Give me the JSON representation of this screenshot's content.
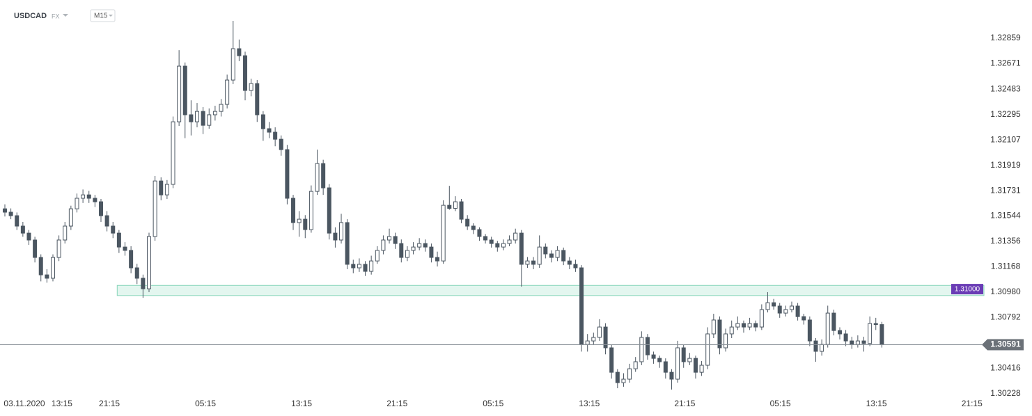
{
  "chart_data": {
    "type": "candlestick",
    "symbol": "USDCAD",
    "market": "FX",
    "timeframe": "M15",
    "grid": false,
    "up_color": "#ffffff",
    "down_color": "#4b5661",
    "edge_color": "#4b5661",
    "ylim": [
      1.30156,
      1.33091
    ],
    "xlim": [
      -0.81,
      163
    ],
    "yticks": [
      1.32859,
      1.32671,
      1.32483,
      1.32295,
      1.32107,
      1.31919,
      1.31731,
      1.31544,
      1.31356,
      1.31168,
      {
        "value": 1.3098,
        "label": "1.30980"
      },
      1.30792,
      1.30416,
      1.30228
    ],
    "xticks": [
      {
        "value": 3.25,
        "label": "03.11.2020"
      },
      {
        "value": 9.5,
        "label": "13:15"
      },
      {
        "value": 17.4,
        "label": "21:15"
      },
      {
        "value": 33.4,
        "label": "05:15"
      },
      {
        "value": 49.4,
        "label": "13:15"
      },
      {
        "value": 65.3,
        "label": "21:15"
      },
      {
        "value": 81.3,
        "label": "05:15"
      },
      {
        "value": 97.3,
        "label": "13:15"
      },
      {
        "value": 113.2,
        "label": "21:15"
      },
      {
        "value": 129.1,
        "label": "05:15"
      },
      {
        "value": 145.1,
        "label": "13:15"
      },
      {
        "value": 161.0,
        "label": "21:15"
      }
    ],
    "zone": {
      "level": 1.31,
      "label": "1.31000",
      "low": 1.30955,
      "high": 1.3103,
      "x_start": 18.7,
      "fill": "#e3f6ef",
      "edge": "#86d5b9",
      "label_color": "#6a3cb5"
    },
    "current_price": 1.30591,
    "candles": [
      [
        1.31597,
        1.3163,
        1.3154,
        1.31572
      ],
      [
        1.31572,
        1.316,
        1.3152,
        1.31546
      ],
      [
        1.31546,
        1.3157,
        1.3144,
        1.31469
      ],
      [
        1.31469,
        1.315,
        1.3139,
        1.31417
      ],
      [
        1.31417,
        1.3144,
        1.3133,
        1.31366
      ],
      [
        1.31366,
        1.3139,
        1.312,
        1.31237
      ],
      [
        1.31237,
        1.3126,
        1.3106,
        1.31108
      ],
      [
        1.31108,
        1.3115,
        1.3105,
        1.31083
      ],
      [
        1.31083,
        1.3126,
        1.3106,
        1.31237
      ],
      [
        1.31237,
        1.314,
        1.3121,
        1.31366
      ],
      [
        1.31366,
        1.315,
        1.3134,
        1.31469
      ],
      [
        1.31469,
        1.3162,
        1.3144,
        1.31597
      ],
      [
        1.31597,
        1.3171,
        1.3157,
        1.31675
      ],
      [
        1.31675,
        1.3174,
        1.3164,
        1.317
      ],
      [
        1.317,
        1.3173,
        1.3164,
        1.31675
      ],
      [
        1.31675,
        1.317,
        1.3161,
        1.31649
      ],
      [
        1.31649,
        1.3167,
        1.315,
        1.31546
      ],
      [
        1.31546,
        1.3158,
        1.3143,
        1.31469
      ],
      [
        1.31469,
        1.315,
        1.3138,
        1.31417
      ],
      [
        1.31417,
        1.3144,
        1.3127,
        1.31314
      ],
      [
        1.31314,
        1.3135,
        1.3125,
        1.31289
      ],
      [
        1.31289,
        1.3132,
        1.3112,
        1.3116
      ],
      [
        1.3116,
        1.3119,
        1.3104,
        1.31083
      ],
      [
        1.31083,
        1.3111,
        1.30938,
        1.31005
      ],
      [
        1.31005,
        1.3142,
        1.3098,
        1.31392
      ],
      [
        1.31392,
        1.3184,
        1.3136,
        1.31803
      ],
      [
        1.31803,
        1.3183,
        1.3166,
        1.317
      ],
      [
        1.317,
        1.3181,
        1.3167,
        1.31778
      ],
      [
        1.31778,
        1.3228,
        1.3175,
        1.32241
      ],
      [
        1.32241,
        1.32771,
        1.3221,
        1.32653
      ],
      [
        1.32653,
        1.3268,
        1.3212,
        1.32293
      ],
      [
        1.32293,
        1.324,
        1.3214,
        1.32241
      ],
      [
        1.32241,
        1.3238,
        1.322,
        1.32318
      ],
      [
        1.32318,
        1.3235,
        1.3215,
        1.32215
      ],
      [
        1.32215,
        1.3234,
        1.3219,
        1.32293
      ],
      [
        1.32293,
        1.3236,
        1.3225,
        1.32318
      ],
      [
        1.32318,
        1.3241,
        1.3228,
        1.3237
      ],
      [
        1.3237,
        1.3259,
        1.3234,
        1.3255
      ],
      [
        1.3255,
        1.32988,
        1.3252,
        1.32782
      ],
      [
        1.32782,
        1.3285,
        1.3269,
        1.3273
      ],
      [
        1.3273,
        1.3276,
        1.324,
        1.32473
      ],
      [
        1.32473,
        1.3256,
        1.3243,
        1.32524
      ],
      [
        1.32524,
        1.3255,
        1.3224,
        1.32293
      ],
      [
        1.32293,
        1.3232,
        1.321,
        1.3219
      ],
      [
        1.3219,
        1.3224,
        1.3212,
        1.32164
      ],
      [
        1.32164,
        1.322,
        1.3206,
        1.32112
      ],
      [
        1.32112,
        1.3214,
        1.3199,
        1.32035
      ],
      [
        1.32035,
        1.3207,
        1.3163,
        1.31675
      ],
      [
        1.31675,
        1.317,
        1.3144,
        1.31495
      ],
      [
        1.31495,
        1.3158,
        1.3139,
        1.3152
      ],
      [
        1.3152,
        1.3155,
        1.3138,
        1.31443
      ],
      [
        1.31443,
        1.3177,
        1.3142,
        1.31726
      ],
      [
        1.31726,
        1.32035,
        1.317,
        1.31932
      ],
      [
        1.31932,
        1.3196,
        1.317,
        1.31752
      ],
      [
        1.31752,
        1.3178,
        1.3137,
        1.31417
      ],
      [
        1.31417,
        1.3146,
        1.3131,
        1.31366
      ],
      [
        1.31366,
        1.3156,
        1.3134,
        1.31495
      ],
      [
        1.31495,
        1.3152,
        1.3115,
        1.31186
      ],
      [
        1.31186,
        1.3122,
        1.3112,
        1.3116
      ],
      [
        1.3116,
        1.3123,
        1.3113,
        1.31186
      ],
      [
        1.31186,
        1.3121,
        1.311,
        1.31134
      ],
      [
        1.31134,
        1.3125,
        1.3111,
        1.31211
      ],
      [
        1.31211,
        1.3132,
        1.3119,
        1.31289
      ],
      [
        1.31289,
        1.314,
        1.3126,
        1.31366
      ],
      [
        1.31366,
        1.3145,
        1.3134,
        1.31392
      ],
      [
        1.31392,
        1.3142,
        1.313,
        1.3134
      ],
      [
        1.3134,
        1.3137,
        1.312,
        1.31237
      ],
      [
        1.31237,
        1.3132,
        1.3121,
        1.31289
      ],
      [
        1.31289,
        1.3135,
        1.3126,
        1.31314
      ],
      [
        1.31314,
        1.3138,
        1.3129,
        1.3134
      ],
      [
        1.3134,
        1.3137,
        1.3128,
        1.31314
      ],
      [
        1.31314,
        1.3134,
        1.312,
        1.31237
      ],
      [
        1.31237,
        1.3128,
        1.3117,
        1.31211
      ],
      [
        1.31211,
        1.3166,
        1.3119,
        1.31623
      ],
      [
        1.31623,
        1.31767,
        1.3159,
        1.316
      ],
      [
        1.316,
        1.3169,
        1.3158,
        1.31649
      ],
      [
        1.31649,
        1.3167,
        1.3149,
        1.3152
      ],
      [
        1.3152,
        1.3155,
        1.3144,
        1.31469
      ],
      [
        1.31469,
        1.3149,
        1.3141,
        1.31443
      ],
      [
        1.31443,
        1.3146,
        1.3136,
        1.31392
      ],
      [
        1.31392,
        1.3141,
        1.3134,
        1.31366
      ],
      [
        1.31366,
        1.3139,
        1.3131,
        1.3134
      ],
      [
        1.3134,
        1.3136,
        1.3128,
        1.31314
      ],
      [
        1.31314,
        1.3137,
        1.3129,
        1.3134
      ],
      [
        1.3134,
        1.314,
        1.3132,
        1.31366
      ],
      [
        1.31366,
        1.3145,
        1.3134,
        1.31417
      ],
      [
        1.31417,
        1.3144,
        1.31021,
        1.31186
      ],
      [
        1.31186,
        1.3124,
        1.3116,
        1.31211
      ],
      [
        1.31211,
        1.3124,
        1.3115,
        1.31186
      ],
      [
        1.31186,
        1.314,
        1.3116,
        1.31314
      ],
      [
        1.31314,
        1.3134,
        1.3123,
        1.31263
      ],
      [
        1.31263,
        1.3129,
        1.312,
        1.31237
      ],
      [
        1.31237,
        1.3132,
        1.3121,
        1.31289
      ],
      [
        1.31289,
        1.3131,
        1.3118,
        1.31211
      ],
      [
        1.31211,
        1.3124,
        1.3115,
        1.31186
      ],
      [
        1.31186,
        1.3122,
        1.3113,
        1.3116
      ],
      [
        1.3116,
        1.3118,
        1.3054,
        1.30593
      ],
      [
        1.30593,
        1.3067,
        1.3054,
        1.30619
      ],
      [
        1.30619,
        1.3068,
        1.3059,
        1.30645
      ],
      [
        1.30645,
        1.3078,
        1.3062,
        1.30722
      ],
      [
        1.30722,
        1.3075,
        1.3052,
        1.30568
      ],
      [
        1.30568,
        1.3059,
        1.3034,
        1.30387
      ],
      [
        1.30387,
        1.3041,
        1.30269,
        1.3031
      ],
      [
        1.3031,
        1.3038,
        1.3028,
        1.30336
      ],
      [
        1.30336,
        1.3045,
        1.3031,
        1.30413
      ],
      [
        1.30413,
        1.305,
        1.3039,
        1.30465
      ],
      [
        1.30465,
        1.3069,
        1.3044,
        1.30645
      ],
      [
        1.30645,
        1.3067,
        1.3048,
        1.30516
      ],
      [
        1.30516,
        1.3054,
        1.3045,
        1.3049
      ],
      [
        1.3049,
        1.3051,
        1.3042,
        1.30465
      ],
      [
        1.30465,
        1.3049,
        1.3034,
        1.30387
      ],
      [
        1.30387,
        1.3041,
        1.30259,
        1.30336
      ],
      [
        1.30336,
        1.3062,
        1.3031,
        1.30568
      ],
      [
        1.30568,
        1.3059,
        1.3042,
        1.30465
      ],
      [
        1.30465,
        1.3053,
        1.3044,
        1.3049
      ],
      [
        1.3049,
        1.3051,
        1.3034,
        1.30387
      ],
      [
        1.30387,
        1.3047,
        1.3036,
        1.30439
      ],
      [
        1.30439,
        1.3072,
        1.3041,
        1.30671
      ],
      [
        1.30671,
        1.3082,
        1.3064,
        1.30774
      ],
      [
        1.30774,
        1.308,
        1.3052,
        1.30568
      ],
      [
        1.30568,
        1.3071,
        1.3054,
        1.30671
      ],
      [
        1.30671,
        1.3077,
        1.3064,
        1.30722
      ],
      [
        1.30722,
        1.308,
        1.307,
        1.30748
      ],
      [
        1.30748,
        1.3077,
        1.3068,
        1.30722
      ],
      [
        1.30722,
        1.3079,
        1.307,
        1.30748
      ],
      [
        1.30748,
        1.3077,
        1.3069,
        1.30722
      ],
      [
        1.30722,
        1.3089,
        1.307,
        1.30851
      ],
      [
        1.30851,
        1.3098,
        1.3083,
        1.30902
      ],
      [
        1.30902,
        1.3093,
        1.3085,
        1.30877
      ],
      [
        1.30877,
        1.309,
        1.3079,
        1.30825
      ],
      [
        1.30825,
        1.3088,
        1.308,
        1.30851
      ],
      [
        1.30851,
        1.3091,
        1.3083,
        1.30877
      ],
      [
        1.30877,
        1.309,
        1.3077,
        1.30799
      ],
      [
        1.30799,
        1.3082,
        1.3074,
        1.30774
      ],
      [
        1.30774,
        1.308,
        1.3058,
        1.30619
      ],
      [
        1.30619,
        1.3064,
        1.30465,
        1.30542
      ],
      [
        1.30542,
        1.3063,
        1.3051,
        1.30593
      ],
      [
        1.30593,
        1.3088,
        1.3057,
        1.30825
      ],
      [
        1.30825,
        1.3085,
        1.3066,
        1.30696
      ],
      [
        1.30696,
        1.3072,
        1.3063,
        1.30671
      ],
      [
        1.30671,
        1.307,
        1.3058,
        1.30619
      ],
      [
        1.30619,
        1.3065,
        1.3056,
        1.30593
      ],
      [
        1.30593,
        1.3066,
        1.3057,
        1.30619
      ],
      [
        1.30619,
        1.3065,
        1.3054,
        1.306
      ],
      [
        1.306,
        1.308,
        1.3058,
        1.30748
      ],
      [
        1.30748,
        1.3079,
        1.307,
        1.3074
      ],
      [
        1.3074,
        1.3076,
        1.3057,
        1.30591
      ]
    ]
  }
}
